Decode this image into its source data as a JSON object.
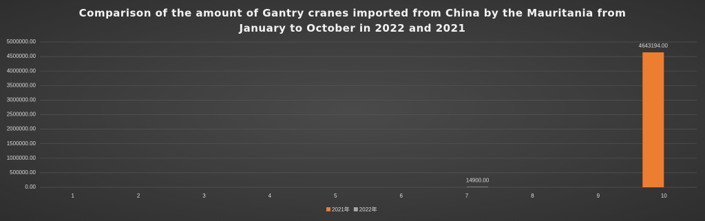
{
  "chart_data": {
    "type": "bar",
    "title": "Comparison of the amount of Gantry cranes imported from China by the Mauritania from January to October in 2022 and 2021",
    "categories": [
      "1",
      "2",
      "3",
      "4",
      "5",
      "6",
      "7",
      "8",
      "9",
      "10"
    ],
    "series": [
      {
        "name": "2021年",
        "color": "#ed7d31",
        "values": [
          null,
          null,
          null,
          null,
          null,
          null,
          null,
          null,
          null,
          4643194
        ],
        "value_labels": [
          null,
          null,
          null,
          null,
          null,
          null,
          null,
          null,
          null,
          "4643194.00"
        ]
      },
      {
        "name": "2022年",
        "color": "#a5a5a5",
        "values": [
          null,
          null,
          null,
          null,
          null,
          null,
          14900,
          null,
          null,
          null
        ],
        "value_labels": [
          null,
          null,
          null,
          null,
          null,
          null,
          "14900.00",
          null,
          null,
          null
        ]
      }
    ],
    "ylim": [
      0,
      5000000
    ],
    "yticks": [
      {
        "value": 0,
        "label": "0.00"
      },
      {
        "value": 500000,
        "label": "500000.00"
      },
      {
        "value": 1000000,
        "label": "1000000.00"
      },
      {
        "value": 1500000,
        "label": "1500000.00"
      },
      {
        "value": 2000000,
        "label": "2000000.00"
      },
      {
        "value": 2500000,
        "label": "2500000.00"
      },
      {
        "value": 3000000,
        "label": "3000000.00"
      },
      {
        "value": 3500000,
        "label": "3500000.00"
      },
      {
        "value": 4000000,
        "label": "4000000.00"
      },
      {
        "value": 4500000,
        "label": "4500000.00"
      },
      {
        "value": 5000000,
        "label": "5000000.00"
      }
    ],
    "grid": true,
    "legend": "bottom"
  }
}
